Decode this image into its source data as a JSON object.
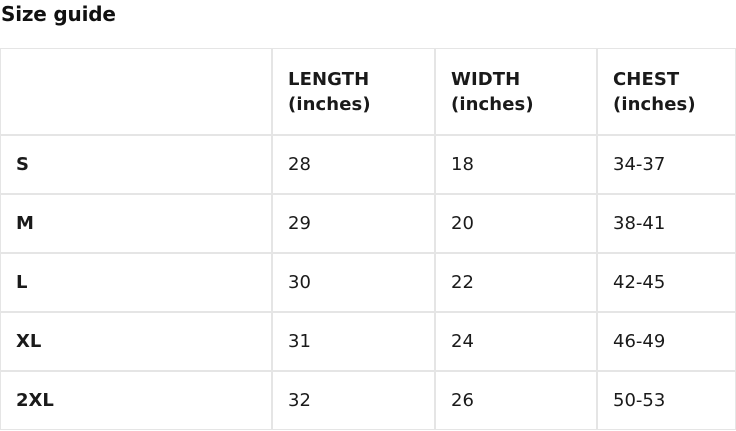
{
  "page": {
    "title": "Size guide"
  },
  "colors": {
    "background": "#ffffff",
    "text": "#1a1a1a",
    "border": "#e5e5e5"
  },
  "size_table": {
    "headers": {
      "size": "",
      "length": "LENGTH (inches)",
      "width": "WIDTH (inches)",
      "chest": "CHEST (inches)"
    },
    "rows": [
      {
        "size": "S",
        "length": "28",
        "width": "18",
        "chest": "34-37"
      },
      {
        "size": "M",
        "length": "29",
        "width": "20",
        "chest": "38-41"
      },
      {
        "size": "L",
        "length": "30",
        "width": "22",
        "chest": "42-45"
      },
      {
        "size": "XL",
        "length": "31",
        "width": "24",
        "chest": "46-49"
      },
      {
        "size": "2XL",
        "length": "32",
        "width": "26",
        "chest": "50-53"
      }
    ]
  }
}
